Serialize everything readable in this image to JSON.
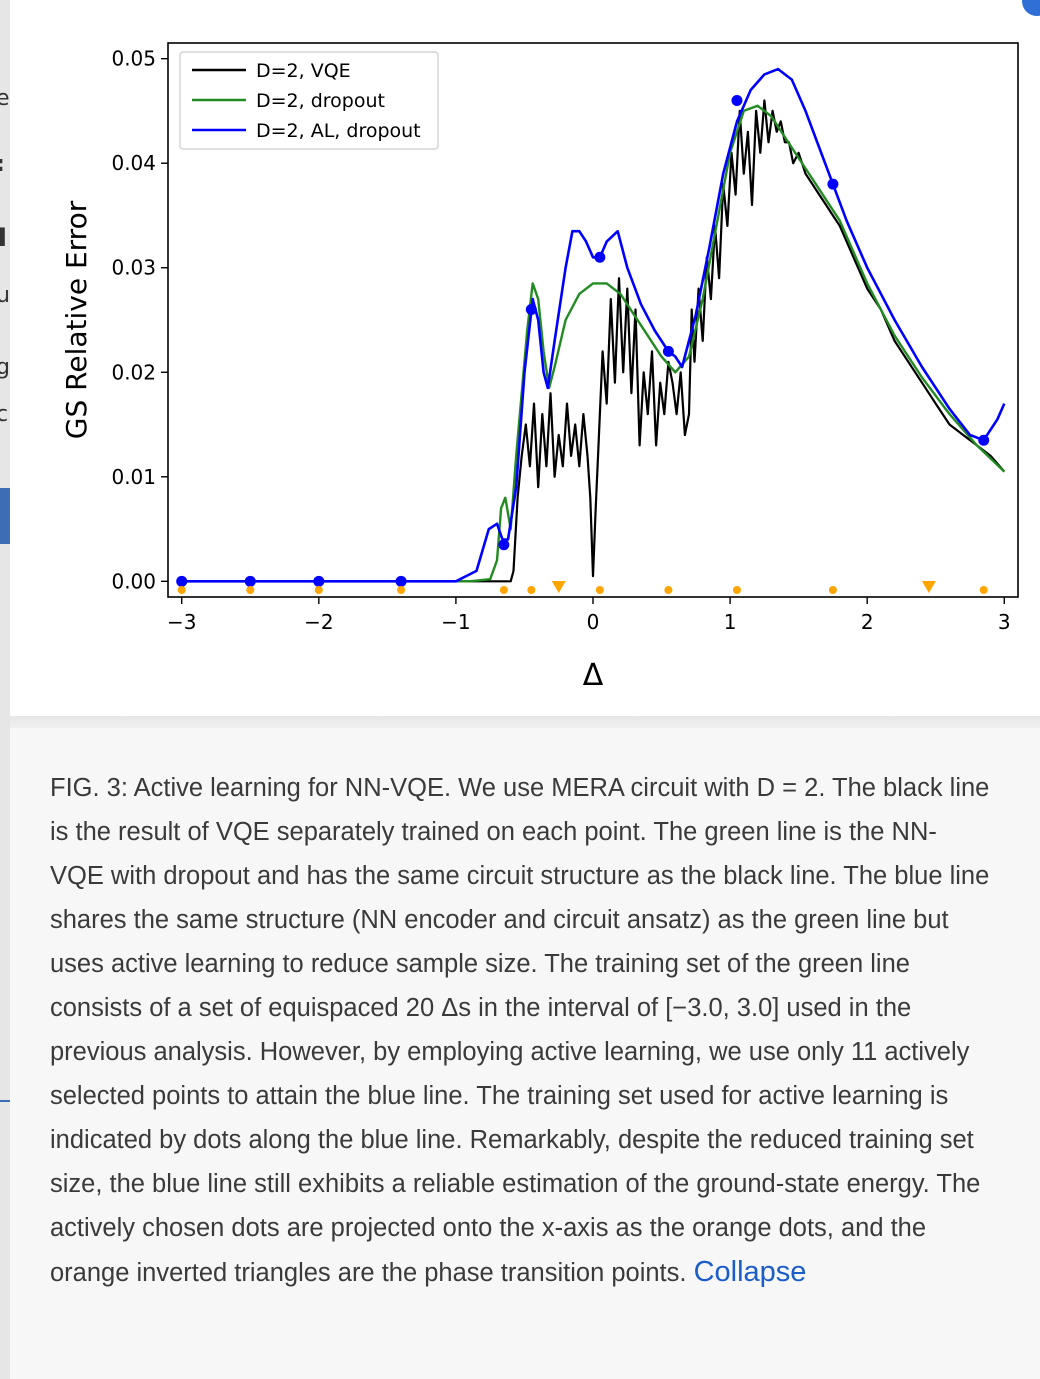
{
  "caption": {
    "text": "FIG. 3: Active learning for NN-VQE. We use MERA circuit with D = 2. The black line is the result of VQE separately trained on each point. The green line is the NN-VQE with dropout and has the same circuit structure as the black line. The blue line shares the same structure (NN encoder and circuit ansatz) as the green line but uses active learning to reduce sample size. The training set of the green line consists of a set of equispaced 20 Δs in the interval of [−3.0, 3.0] used in the previous analysis. However, by employing active learning, we use only 11 actively selected points to attain the blue line. The training set used for active learning is indicated by dots along the blue line. Remarkably, despite the reduced training set size, the blue line still exhibits a reliable estimation of the ground-state energy. The actively chosen dots are projected onto the x-axis as the orange dots, and the orange inverted triangles are the phase transition points.",
    "collapse_label": "Collapse"
  },
  "colors": {
    "vqe": "#000000",
    "dropout": "#228b22",
    "al_dropout": "#0000ff",
    "markers": "#ffa500",
    "link": "#1a5dc8"
  },
  "chart_data": {
    "type": "line",
    "xlabel": "Δ",
    "ylabel": "GS Relative Error",
    "xlim": [
      -3.1,
      3.1
    ],
    "ylim": [
      -0.0015,
      0.0515
    ],
    "xticks": [
      -3,
      -2,
      -1,
      0,
      1,
      2,
      3
    ],
    "xtick_labels": [
      "−3",
      "−2",
      "−1",
      "0",
      "1",
      "2",
      "3"
    ],
    "yticks": [
      0.0,
      0.01,
      0.02,
      0.03,
      0.04,
      0.05
    ],
    "ytick_labels": [
      "0.00",
      "0.01",
      "0.02",
      "0.03",
      "0.04",
      "0.05"
    ],
    "legend_position": "top-left",
    "grid": false,
    "series": [
      {
        "name": "D=2, VQE",
        "color": "#000000",
        "points": [
          [
            -3.0,
            0.0
          ],
          [
            -0.6,
            0.0
          ],
          [
            -0.58,
            0.001
          ],
          [
            -0.55,
            0.008
          ],
          [
            -0.52,
            0.012
          ],
          [
            -0.49,
            0.015
          ],
          [
            -0.46,
            0.011
          ],
          [
            -0.43,
            0.017
          ],
          [
            -0.4,
            0.009
          ],
          [
            -0.37,
            0.016
          ],
          [
            -0.34,
            0.011
          ],
          [
            -0.31,
            0.018
          ],
          [
            -0.28,
            0.01
          ],
          [
            -0.25,
            0.014
          ],
          [
            -0.22,
            0.011
          ],
          [
            -0.19,
            0.017
          ],
          [
            -0.16,
            0.012
          ],
          [
            -0.13,
            0.015
          ],
          [
            -0.1,
            0.011
          ],
          [
            -0.07,
            0.016
          ],
          [
            -0.04,
            0.012
          ],
          [
            -0.02,
            0.008
          ],
          [
            0.0,
            0.0005
          ],
          [
            0.02,
            0.007
          ],
          [
            0.04,
            0.013
          ],
          [
            0.07,
            0.022
          ],
          [
            0.1,
            0.017
          ],
          [
            0.13,
            0.027
          ],
          [
            0.16,
            0.019
          ],
          [
            0.19,
            0.029
          ],
          [
            0.22,
            0.02
          ],
          [
            0.25,
            0.028
          ],
          [
            0.28,
            0.018
          ],
          [
            0.31,
            0.026
          ],
          [
            0.34,
            0.013
          ],
          [
            0.37,
            0.02
          ],
          [
            0.4,
            0.016
          ],
          [
            0.43,
            0.022
          ],
          [
            0.46,
            0.013
          ],
          [
            0.49,
            0.019
          ],
          [
            0.52,
            0.016
          ],
          [
            0.55,
            0.021
          ],
          [
            0.58,
            0.019
          ],
          [
            0.61,
            0.016
          ],
          [
            0.64,
            0.02
          ],
          [
            0.67,
            0.014
          ],
          [
            0.7,
            0.016
          ],
          [
            0.72,
            0.026
          ],
          [
            0.74,
            0.021
          ],
          [
            0.77,
            0.028
          ],
          [
            0.8,
            0.023
          ],
          [
            0.83,
            0.031
          ],
          [
            0.86,
            0.027
          ],
          [
            0.89,
            0.034
          ],
          [
            0.92,
            0.029
          ],
          [
            0.95,
            0.038
          ],
          [
            0.98,
            0.034
          ],
          [
            1.01,
            0.041
          ],
          [
            1.04,
            0.037
          ],
          [
            1.07,
            0.045
          ],
          [
            1.1,
            0.039
          ],
          [
            1.13,
            0.043
          ],
          [
            1.16,
            0.036
          ],
          [
            1.19,
            0.045
          ],
          [
            1.22,
            0.041
          ],
          [
            1.25,
            0.046
          ],
          [
            1.28,
            0.042
          ],
          [
            1.31,
            0.045
          ],
          [
            1.34,
            0.043
          ],
          [
            1.37,
            0.044
          ],
          [
            1.4,
            0.042
          ],
          [
            1.43,
            0.042
          ],
          [
            1.46,
            0.04
          ],
          [
            1.5,
            0.041
          ],
          [
            1.55,
            0.039
          ],
          [
            1.6,
            0.038
          ],
          [
            1.65,
            0.037
          ],
          [
            1.7,
            0.036
          ],
          [
            1.75,
            0.035
          ],
          [
            1.8,
            0.034
          ],
          [
            1.9,
            0.031
          ],
          [
            2.0,
            0.028
          ],
          [
            2.1,
            0.026
          ],
          [
            2.2,
            0.023
          ],
          [
            2.3,
            0.021
          ],
          [
            2.4,
            0.019
          ],
          [
            2.5,
            0.017
          ],
          [
            2.6,
            0.015
          ],
          [
            2.7,
            0.014
          ],
          [
            2.8,
            0.013
          ],
          [
            2.9,
            0.012
          ],
          [
            3.0,
            0.0105
          ]
        ]
      },
      {
        "name": "D=2, dropout",
        "color": "#228b22",
        "points": [
          [
            -3.0,
            0.0
          ],
          [
            -0.9,
            0.0
          ],
          [
            -0.75,
            0.0002
          ],
          [
            -0.7,
            0.002
          ],
          [
            -0.67,
            0.007
          ],
          [
            -0.64,
            0.008
          ],
          [
            -0.6,
            0.005
          ],
          [
            -0.56,
            0.012
          ],
          [
            -0.52,
            0.018
          ],
          [
            -0.48,
            0.024
          ],
          [
            -0.44,
            0.0285
          ],
          [
            -0.4,
            0.027
          ],
          [
            -0.36,
            0.022
          ],
          [
            -0.32,
            0.0185
          ],
          [
            -0.28,
            0.0205
          ],
          [
            -0.2,
            0.025
          ],
          [
            -0.1,
            0.0275
          ],
          [
            0.0,
            0.0285
          ],
          [
            0.1,
            0.0285
          ],
          [
            0.2,
            0.0275
          ],
          [
            0.3,
            0.0255
          ],
          [
            0.4,
            0.0235
          ],
          [
            0.5,
            0.0215
          ],
          [
            0.6,
            0.02
          ],
          [
            0.7,
            0.0215
          ],
          [
            0.8,
            0.027
          ],
          [
            0.9,
            0.034
          ],
          [
            1.0,
            0.041
          ],
          [
            1.1,
            0.045
          ],
          [
            1.2,
            0.0455
          ],
          [
            1.3,
            0.0445
          ],
          [
            1.4,
            0.0425
          ],
          [
            1.5,
            0.0405
          ],
          [
            1.6,
            0.0385
          ],
          [
            1.7,
            0.0365
          ],
          [
            1.8,
            0.0345
          ],
          [
            1.9,
            0.0315
          ],
          [
            2.0,
            0.0285
          ],
          [
            2.2,
            0.0235
          ],
          [
            2.4,
            0.0195
          ],
          [
            2.6,
            0.016
          ],
          [
            2.8,
            0.013
          ],
          [
            3.0,
            0.0105
          ]
        ]
      },
      {
        "name": "D=2, AL, dropout",
        "color": "#0000ff",
        "points": [
          [
            -3.0,
            0.0
          ],
          [
            -1.0,
            0.0
          ],
          [
            -0.85,
            0.001
          ],
          [
            -0.76,
            0.005
          ],
          [
            -0.7,
            0.0055
          ],
          [
            -0.66,
            0.004
          ],
          [
            -0.62,
            0.004
          ],
          [
            -0.56,
            0.009
          ],
          [
            -0.5,
            0.02
          ],
          [
            -0.44,
            0.027
          ],
          [
            -0.4,
            0.025
          ],
          [
            -0.36,
            0.02
          ],
          [
            -0.33,
            0.0185
          ],
          [
            -0.28,
            0.023
          ],
          [
            -0.2,
            0.03
          ],
          [
            -0.15,
            0.0335
          ],
          [
            -0.1,
            0.0335
          ],
          [
            -0.05,
            0.0325
          ],
          [
            0.0,
            0.031
          ],
          [
            0.05,
            0.031
          ],
          [
            0.1,
            0.0325
          ],
          [
            0.18,
            0.0335
          ],
          [
            0.25,
            0.03
          ],
          [
            0.35,
            0.0265
          ],
          [
            0.45,
            0.024
          ],
          [
            0.55,
            0.022
          ],
          [
            0.6,
            0.0215
          ],
          [
            0.65,
            0.0205
          ],
          [
            0.75,
            0.0255
          ],
          [
            0.85,
            0.032
          ],
          [
            0.95,
            0.039
          ],
          [
            1.05,
            0.044
          ],
          [
            1.15,
            0.047
          ],
          [
            1.25,
            0.0485
          ],
          [
            1.35,
            0.049
          ],
          [
            1.45,
            0.048
          ],
          [
            1.55,
            0.045
          ],
          [
            1.65,
            0.0415
          ],
          [
            1.75,
            0.038
          ],
          [
            1.85,
            0.0345
          ],
          [
            2.0,
            0.03
          ],
          [
            2.2,
            0.025
          ],
          [
            2.4,
            0.0205
          ],
          [
            2.6,
            0.0165
          ],
          [
            2.75,
            0.014
          ],
          [
            2.85,
            0.0135
          ],
          [
            2.95,
            0.0155
          ],
          [
            3.0,
            0.017
          ]
        ]
      }
    ],
    "training_points": [
      [
        -3.0,
        0.0
      ],
      [
        -2.5,
        0.0
      ],
      [
        -2.0,
        0.0
      ],
      [
        -1.4,
        0.0
      ],
      [
        -0.65,
        0.0035
      ],
      [
        -0.45,
        0.026
      ],
      [
        0.05,
        0.031
      ],
      [
        0.55,
        0.022
      ],
      [
        1.05,
        0.046
      ],
      [
        1.75,
        0.038
      ],
      [
        2.85,
        0.0135
      ]
    ],
    "projected_points": [
      -3.0,
      -2.5,
      -2.0,
      -1.4,
      -0.65,
      -0.45,
      0.05,
      0.55,
      1.05,
      1.75,
      2.85
    ],
    "transition_points": [
      -0.25,
      2.45
    ]
  }
}
